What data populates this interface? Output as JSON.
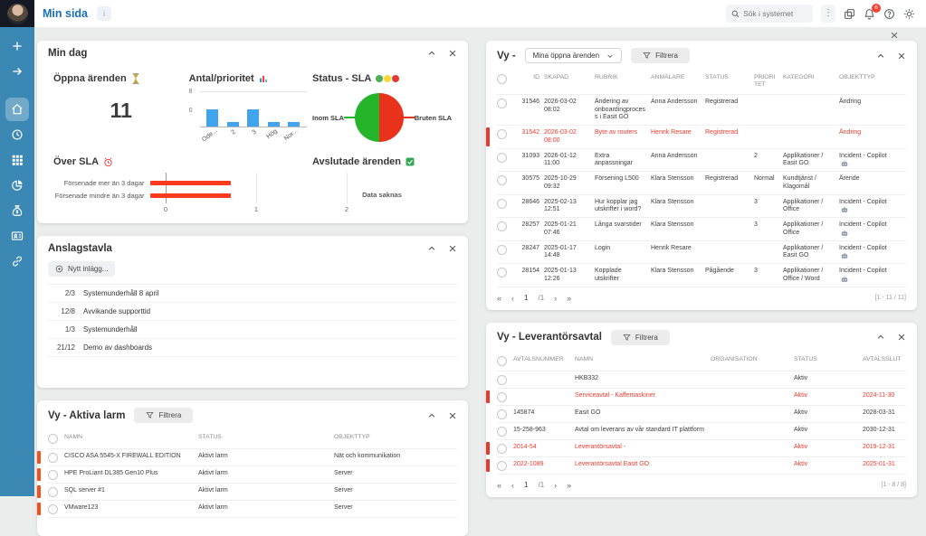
{
  "topbar": {
    "title": "Min sida",
    "title_badge": "i",
    "search": {
      "placeholder": "Sök i systemet"
    },
    "notifications_count": "6"
  },
  "sidebar": {
    "icons": [
      "plus",
      "arrow-right",
      "home",
      "history",
      "apps-grid",
      "pie-chart",
      "money-bag",
      "contact-card",
      "link"
    ],
    "active_icon": "home"
  },
  "panels": {
    "min_dag": {
      "title": "Min dag",
      "open_cases": {
        "heading": "Öppna ärenden",
        "value": "11"
      },
      "antal": {
        "heading": "Antal/prioritet"
      },
      "sla": {
        "heading": "Status - SLA"
      },
      "over_sla": {
        "heading": "Över SLA"
      },
      "closed": {
        "heading": "Avslutade ärenden",
        "empty_text": "Data saknas"
      }
    },
    "anslagstavla": {
      "title": "Anslagstavla",
      "new_post_label": "Nytt inlägg...",
      "items": [
        {
          "date": "2/3",
          "title": "Systemunderhåll 8 april"
        },
        {
          "date": "12/8",
          "title": "Avvikande supporttid"
        },
        {
          "date": "1/3",
          "title": "Systemunderhåll"
        },
        {
          "date": "21/12",
          "title": "Demo av dashboards"
        }
      ]
    },
    "open_cases_view": {
      "title_prefix": "Vy -",
      "view_selector": "Mina öppna ärenden",
      "filter_label": "Filtrera",
      "columns": [
        "ID",
        "SKAPAD",
        "RUBRIK",
        "ANMÄLARE",
        "STATUS",
        "PRIORITET",
        "KATEGORI",
        "OBJEKTTYP"
      ],
      "rows": [
        {
          "id": "31546",
          "skapad": "2026-03-02 08:02",
          "rubrik": "Ändering av onboardingprocess i Easit GO",
          "anmalare": "Anna Andersson",
          "status": "Registrerad",
          "prioritet": "",
          "kategori": "",
          "objekttyp": "Ändring",
          "alert": false,
          "copilot": false
        },
        {
          "id": "31542",
          "skapad": "2026-03-02 08:00",
          "rubrik": "Byte av routers",
          "anmalare": "Henrik Resare",
          "status": "Registrerad",
          "prioritet": "",
          "kategori": "",
          "objekttyp": "Ändring",
          "alert": true,
          "copilot": false
        },
        {
          "id": "31093",
          "skapad": "2026-01-12 11:00",
          "rubrik": "Extra anpassningar",
          "anmalare": "Anna Andersson",
          "status": "",
          "prioritet": "2",
          "kategori": "Applikationer / Easit GO",
          "objekttyp": "Incident - Copilot",
          "alert": false,
          "copilot": true
        },
        {
          "id": "30575",
          "skapad": "2025-10-29 09:32",
          "rubrik": "Försening L500",
          "anmalare": "Klara Stensson",
          "status": "Registrerad",
          "prioritet": "Normal",
          "kategori": "Kundtjänst / Klagomål",
          "objekttyp": "Ärende",
          "alert": false,
          "copilot": false
        },
        {
          "id": "28646",
          "skapad": "2025-02-13 12:51",
          "rubrik": "Hur kopplar jag utskrifter i word?",
          "anmalare": "Klara Stensson",
          "status": "",
          "prioritet": "3",
          "kategori": "Applikationer / Office",
          "objekttyp": "Incident - Copilot",
          "alert": false,
          "copilot": true
        },
        {
          "id": "28257",
          "skapad": "2025-01-21 07:46",
          "rubrik": "Långa svarstider",
          "anmalare": "Klara Stensson",
          "status": "",
          "prioritet": "3",
          "kategori": "Applikationer / Office",
          "objekttyp": "Incident - Copilot",
          "alert": false,
          "copilot": true
        },
        {
          "id": "28247",
          "skapad": "2025-01-17 14:48",
          "rubrik": "Login",
          "anmalare": "Henrik Resare",
          "status": "",
          "prioritet": "",
          "kategori": "Applikationer / Easit GO",
          "objekttyp": "Incident - Copilot",
          "alert": false,
          "copilot": true
        },
        {
          "id": "28154",
          "skapad": "2025-01-13 12:26",
          "rubrik": "Kopplade utskrifter",
          "anmalare": "Klara Stensson",
          "status": "Pågående",
          "prioritet": "3",
          "kategori": "Applikationer / Office / Word",
          "objekttyp": "Incident - Copilot",
          "alert": false,
          "copilot": true
        }
      ],
      "pagination": {
        "first": "«",
        "prev": "‹",
        "page": "1",
        "of": "/1",
        "next": "›",
        "last": "»",
        "range": "[1 - 11 / 11]"
      }
    },
    "supplier_agreements_view": {
      "title": "Vy - Leverantörsavtal",
      "filter_label": "Filtrera",
      "columns": [
        "AVTALSNUMMER",
        "NAMN",
        "ORGANISATION",
        "STATUS",
        "AVTALSSLUT"
      ],
      "rows": [
        {
          "avtalsnummer": "",
          "namn": "HKB332",
          "organisation": "",
          "status": "Aktiv",
          "avtalsslut": "",
          "alert": false
        },
        {
          "avtalsnummer": "",
          "namn": "Serviceavtal - Kaffemaskiner",
          "organisation": "",
          "status": "Aktiv",
          "avtalsslut": "2024-11-30",
          "alert": true
        },
        {
          "avtalsnummer": "145874",
          "namn": "Easit GO",
          "organisation": "",
          "status": "Aktiv",
          "avtalsslut": "2028-03-31",
          "alert": false
        },
        {
          "avtalsnummer": "15-258-963",
          "namn": "Avtal om leverans av vår standard IT plattform",
          "organisation": "",
          "status": "Aktiv",
          "avtalsslut": "2030-12-31",
          "alert": false
        },
        {
          "avtalsnummer": "2014-54",
          "namn": "Leverantörsavtal -",
          "organisation": "",
          "status": "Aktiv",
          "avtalsslut": "2019-12-31",
          "alert": true
        },
        {
          "avtalsnummer": "2022-1089",
          "namn": "Leverantörsavtal Easit GO",
          "organisation": "",
          "status": "Aktiv",
          "avtalsslut": "2025-01-31",
          "alert": true
        }
      ],
      "pagination": {
        "first": "«",
        "prev": "‹",
        "page": "1",
        "of": "/1",
        "next": "›",
        "last": "»",
        "range": "[1 - 8 / 8]"
      }
    },
    "active_alarms_view": {
      "title": "Vy - Aktiva larm",
      "filter_label": "Filtrera",
      "columns": [
        "NAMN",
        "STATUS",
        "OBJEKTTYP"
      ],
      "rows": [
        {
          "namn": "CISCO ASA 5545-X FIREWALL EDITION",
          "status": "Aktivt larm",
          "objekttyp": "Nät och kommunikation"
        },
        {
          "namn": "HPE ProLiant DL385 Gen10 Plus",
          "status": "Aktivt larm",
          "objekttyp": "Server"
        },
        {
          "namn": "SQL server #1",
          "status": "Aktivt larm",
          "objekttyp": "Server"
        },
        {
          "namn": "VMware123",
          "status": "Aktivt larm",
          "objekttyp": "Server"
        }
      ]
    }
  },
  "chart_data": [
    {
      "id": "antal_prioritet",
      "type": "bar",
      "title": "Antal/prioritet",
      "categories": [
        "Ode...",
        "2",
        "3",
        "Hög",
        "Nor..."
      ],
      "values": [
        4,
        1,
        4,
        1,
        1
      ],
      "ylim": [
        0,
        8
      ],
      "yticks": [
        0,
        8
      ],
      "bar_color": "#41a5ee",
      "grid": true,
      "legend": "none"
    },
    {
      "id": "status_sla",
      "type": "pie",
      "title": "Status - SLA",
      "labels": [
        "Inom SLA",
        "Bruten SLA"
      ],
      "values": [
        50,
        50
      ],
      "colors": [
        "#24b52b",
        "#e8321c"
      ],
      "legend": "side-labels"
    },
    {
      "id": "over_sla",
      "type": "bar-horizontal",
      "title": "Över SLA",
      "categories": [
        "Försenade mer än 3 dagar",
        "Försenade mindre än 3 dagar"
      ],
      "values": [
        1,
        1
      ],
      "xlim": [
        0,
        2
      ],
      "xticks": [
        0,
        1,
        2
      ],
      "bar_color": "#fb3b1e",
      "grid": true,
      "legend": "none"
    }
  ],
  "status_dot_colors": {
    "green": "#4caf50",
    "yellow": "#fdd835",
    "red": "#e53935"
  }
}
